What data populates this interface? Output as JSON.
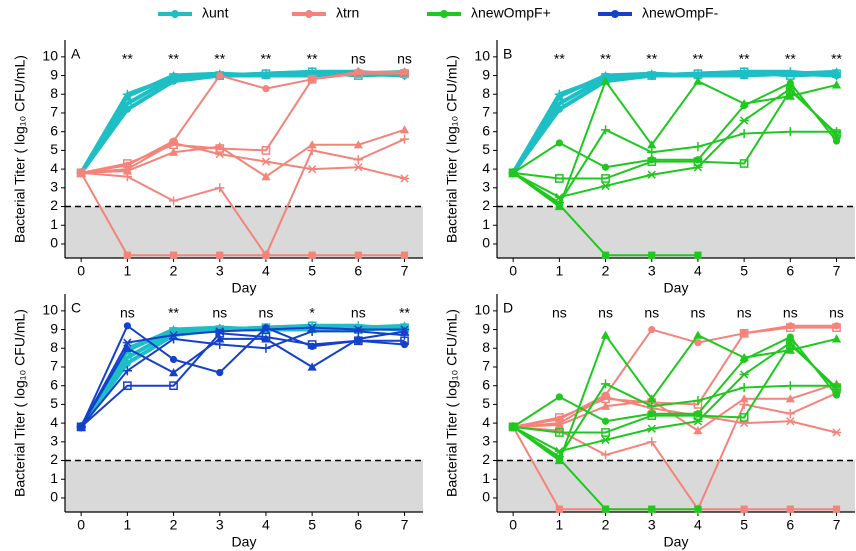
{
  "chart_data": [
    {
      "type": "line",
      "title": "A",
      "x": [
        0,
        1,
        2,
        3,
        4,
        5,
        6,
        7
      ],
      "xlabel": "Day",
      "ylabel": "Bacterial Titer ( log₁₀ CFU/mL)",
      "xlim": [
        -0.35,
        7.4
      ],
      "ylim": [
        -0.75,
        10.9
      ],
      "xticks": [
        0,
        1,
        2,
        3,
        4,
        5,
        6,
        7
      ],
      "yticks": [
        0,
        1,
        2,
        3,
        4,
        5,
        6,
        7,
        8,
        9,
        10
      ],
      "detection_limit": 2,
      "annotations": [
        "**",
        "**",
        "**",
        "**",
        "**",
        "ns",
        "ns"
      ],
      "series": [
        {
          "name": "λunt",
          "color": "#1ebfc4",
          "line_width": 4,
          "replicates": [
            [
              3.8,
              7.2,
              8.7,
              9.0,
              9.0,
              9.1,
              9.1,
              9.0
            ],
            [
              3.8,
              7.5,
              8.9,
              9.0,
              9.1,
              9.2,
              9.0,
              9.1
            ],
            [
              3.8,
              7.9,
              9.0,
              9.1,
              9.0,
              9.0,
              9.1,
              9.2
            ],
            [
              3.8,
              8.0,
              8.9,
              9.0,
              9.1,
              9.2,
              9.2,
              9.0
            ]
          ]
        },
        {
          "name": "λtrn",
          "color": "#f4837a",
          "line_width": 2,
          "replicates": [
            [
              3.8,
              4.2,
              5.5,
              9.0,
              8.3,
              8.8,
              9.2,
              9.2
            ],
            [
              3.8,
              4.3,
              5.3,
              5.1,
              5.0,
              8.8,
              9.1,
              9.1
            ],
            [
              3.8,
              3.9,
              4.9,
              5.2,
              3.6,
              5.3,
              5.3,
              6.1
            ],
            [
              3.8,
              3.6,
              2.3,
              3.0,
              -0.6,
              5.0,
              4.5,
              5.6
            ],
            [
              3.8,
              4.0,
              5.4,
              4.8,
              4.4,
              4.0,
              4.1,
              3.5
            ],
            [
              3.8,
              -0.6,
              -0.6,
              -0.6,
              -0.6,
              -0.6,
              -0.6,
              -0.6
            ]
          ]
        }
      ]
    },
    {
      "type": "line",
      "title": "B",
      "x": [
        0,
        1,
        2,
        3,
        4,
        5,
        6,
        7
      ],
      "xlabel": "Day",
      "ylabel": "Bacterial Titer ( log₁₀ CFU/mL)",
      "xlim": [
        -0.35,
        7.4
      ],
      "ylim": [
        -0.75,
        10.9
      ],
      "xticks": [
        0,
        1,
        2,
        3,
        4,
        5,
        6,
        7
      ],
      "yticks": [
        0,
        1,
        2,
        3,
        4,
        5,
        6,
        7,
        8,
        9,
        10
      ],
      "detection_limit": 2,
      "annotations": [
        "**",
        "**",
        "**",
        "**",
        "**",
        "**",
        "**"
      ],
      "series": [
        {
          "name": "λunt",
          "color": "#1ebfc4",
          "line_width": 4,
          "replicates": [
            [
              3.8,
              7.2,
              8.7,
              9.0,
              9.0,
              9.1,
              9.1,
              9.0
            ],
            [
              3.8,
              7.5,
              8.9,
              9.0,
              9.1,
              9.2,
              9.0,
              9.1
            ],
            [
              3.8,
              7.9,
              9.0,
              9.1,
              9.0,
              9.0,
              9.1,
              9.2
            ],
            [
              3.8,
              8.0,
              8.9,
              9.0,
              9.1,
              9.2,
              9.2,
              9.0
            ]
          ]
        },
        {
          "name": "λnewOmpF+",
          "color": "#1ec81e",
          "line_width": 2,
          "replicates": [
            [
              3.8,
              5.4,
              4.1,
              4.5,
              4.5,
              7.4,
              8.6,
              5.5
            ],
            [
              3.8,
              3.5,
              3.5,
              4.4,
              4.4,
              4.3,
              8.2,
              5.9
            ],
            [
              3.8,
              2.0,
              8.7,
              5.3,
              8.7,
              7.5,
              7.9,
              8.5
            ],
            [
              3.8,
              2.2,
              6.1,
              4.9,
              5.2,
              5.9,
              6.0,
              6.0
            ],
            [
              3.8,
              2.5,
              3.1,
              3.7,
              4.1,
              6.6,
              8.3,
              5.8
            ],
            [
              3.8,
              2.1,
              -0.6,
              -0.6,
              -0.6,
              null,
              null,
              null
            ]
          ]
        }
      ]
    },
    {
      "type": "line",
      "title": "C",
      "x": [
        0,
        1,
        2,
        3,
        4,
        5,
        6,
        7
      ],
      "xlabel": "Day",
      "ylabel": "Bacterial Titer ( log₁₀ CFU/mL)",
      "xlim": [
        -0.35,
        7.4
      ],
      "ylim": [
        -0.75,
        10.9
      ],
      "xticks": [
        0,
        1,
        2,
        3,
        4,
        5,
        6,
        7
      ],
      "yticks": [
        0,
        1,
        2,
        3,
        4,
        5,
        6,
        7,
        8,
        9,
        10
      ],
      "detection_limit": 2,
      "annotations": [
        "ns",
        "**",
        "ns",
        "ns",
        "*",
        "ns",
        "**"
      ],
      "series": [
        {
          "name": "λunt",
          "color": "#1ebfc4",
          "line_width": 4,
          "replicates": [
            [
              3.8,
              7.2,
              8.7,
              9.0,
              9.0,
              9.1,
              9.1,
              9.0
            ],
            [
              3.8,
              7.5,
              8.9,
              9.0,
              9.1,
              9.2,
              9.0,
              9.1
            ],
            [
              3.8,
              7.9,
              9.0,
              9.1,
              9.0,
              9.0,
              9.1,
              9.2
            ],
            [
              3.8,
              8.0,
              8.9,
              9.0,
              9.1,
              9.2,
              9.2,
              9.0
            ]
          ]
        },
        {
          "name": "λnewOmpF-",
          "color": "#1440cc",
          "line_width": 2,
          "replicates": [
            [
              3.8,
              9.2,
              7.4,
              6.7,
              9.1,
              8.1,
              8.4,
              8.2
            ],
            [
              3.8,
              6.0,
              6.0,
              8.8,
              8.6,
              8.2,
              8.4,
              8.4
            ],
            [
              3.8,
              8.0,
              6.7,
              8.5,
              8.5,
              7.0,
              8.5,
              8.9
            ],
            [
              3.8,
              6.8,
              8.5,
              8.2,
              8.0,
              8.9,
              8.9,
              8.7
            ],
            [
              3.8,
              8.3,
              8.7,
              8.9,
              9.0,
              9.1,
              9.0,
              9.0
            ]
          ]
        }
      ]
    },
    {
      "type": "line",
      "title": "D",
      "x": [
        0,
        1,
        2,
        3,
        4,
        5,
        6,
        7
      ],
      "xlabel": "Day",
      "ylabel": "Bacterial Titer ( log₁₀ CFU/mL)",
      "xlim": [
        -0.35,
        7.4
      ],
      "ylim": [
        -0.75,
        10.9
      ],
      "xticks": [
        0,
        1,
        2,
        3,
        4,
        5,
        6,
        7
      ],
      "yticks": [
        0,
        1,
        2,
        3,
        4,
        5,
        6,
        7,
        8,
        9,
        10
      ],
      "detection_limit": 2,
      "annotations": [
        "ns",
        "ns",
        "ns",
        "ns",
        "ns",
        "ns",
        "ns"
      ],
      "series": [
        {
          "name": "λtrn",
          "color": "#f4837a",
          "line_width": 2,
          "replicates": [
            [
              3.8,
              4.2,
              5.5,
              9.0,
              8.3,
              8.8,
              9.2,
              9.2
            ],
            [
              3.8,
              4.3,
              5.3,
              5.1,
              5.0,
              8.8,
              9.1,
              9.1
            ],
            [
              3.8,
              3.9,
              4.9,
              5.2,
              3.6,
              5.3,
              5.3,
              6.1
            ],
            [
              3.8,
              3.6,
              2.3,
              3.0,
              -0.6,
              5.0,
              4.5,
              5.6
            ],
            [
              3.8,
              4.0,
              5.4,
              4.8,
              4.4,
              4.0,
              4.1,
              3.5
            ],
            [
              3.8,
              -0.6,
              -0.6,
              -0.6,
              -0.6,
              -0.6,
              -0.6,
              -0.6
            ]
          ]
        },
        {
          "name": "λnewOmpF+",
          "color": "#1ec81e",
          "line_width": 2,
          "replicates": [
            [
              3.8,
              5.4,
              4.1,
              4.5,
              4.5,
              7.4,
              8.6,
              5.5
            ],
            [
              3.8,
              3.5,
              3.5,
              4.4,
              4.4,
              4.3,
              8.2,
              5.9
            ],
            [
              3.8,
              2.0,
              8.7,
              5.3,
              8.7,
              7.5,
              7.9,
              8.5
            ],
            [
              3.8,
              2.2,
              6.1,
              4.9,
              5.2,
              5.9,
              6.0,
              6.0
            ],
            [
              3.8,
              2.5,
              3.1,
              3.7,
              4.1,
              6.6,
              8.3,
              5.8
            ],
            [
              3.8,
              2.1,
              -0.6,
              -0.6,
              -0.6,
              null,
              null,
              null
            ]
          ]
        }
      ]
    }
  ]
}
